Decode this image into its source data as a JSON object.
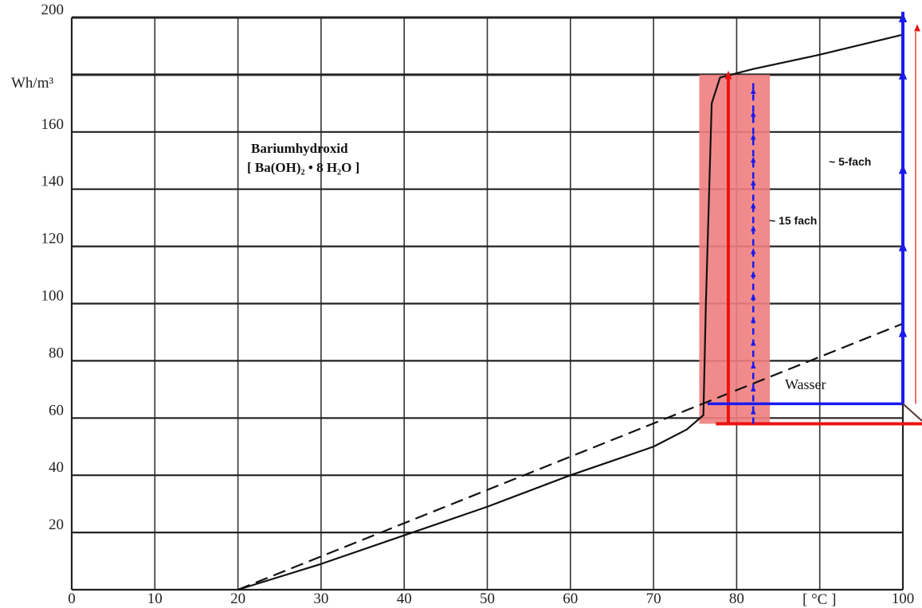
{
  "chart_data": {
    "type": "line",
    "x_ticks": [
      "0",
      "10",
      "20",
      "30",
      "40",
      "50",
      "60",
      "70",
      "80",
      "100"
    ],
    "x_unit": "[ °C ]",
    "y_ticks": [
      "20",
      "40",
      "60",
      "80",
      "100",
      "120",
      "140",
      "160",
      "200"
    ],
    "y_unit": "Wh/m³",
    "xlim": [
      0,
      100
    ],
    "ylim": [
      0,
      200
    ],
    "grid": true,
    "series": [
      {
        "name": "Bariumhydroxid",
        "style": "solid",
        "color": "#111111",
        "x": [
          20,
          30,
          40,
          50,
          60,
          70,
          74,
          76,
          76.3,
          77,
          78,
          82,
          90,
          100
        ],
        "y": [
          0,
          9,
          19,
          29,
          40,
          50,
          56,
          61,
          100,
          170,
          179,
          182,
          187,
          194
        ]
      },
      {
        "name": "Wasser",
        "style": "dashed",
        "color": "#111111",
        "x": [
          20,
          100
        ],
        "y": [
          0,
          93
        ]
      }
    ],
    "annotations": {
      "substance_line1": "Bariumhydroxid",
      "substance_line2": "[ Ba(OH)₂ • 8 H₂O ]",
      "label_5fach": "~ 5-fach",
      "label_15fach": "~ 15 fach",
      "label_wasser": "Wasser"
    },
    "highlight": {
      "band_x": [
        75.5,
        84
      ],
      "band_y": [
        58,
        180
      ],
      "band_color": "#f07e7e",
      "red_color": "#ee1111",
      "blue_color": "#1a1aee"
    }
  }
}
